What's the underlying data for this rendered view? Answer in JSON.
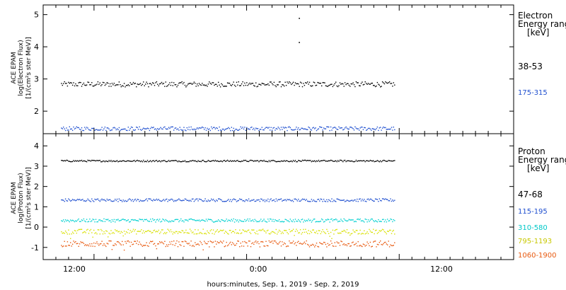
{
  "xlabel": "hours:minutes, Sep.  1, 2019 - Sep.  2, 2019",
  "x_ticks": [
    "12:00",
    "0:00",
    "12:00"
  ],
  "chart_data": [
    {
      "type": "scatter",
      "panel": "electron",
      "ylabel_lines": [
        "ACE EPAM",
        "log(Electron Flux)",
        "[1/(cm²s ster MeV)]"
      ],
      "ylim": [
        1.3,
        5.3
      ],
      "y_ticks": [
        2,
        3,
        4,
        5
      ],
      "legend_title": [
        "Electron",
        "Energy ranges",
        "[keV]"
      ],
      "series": [
        {
          "name": "38-53",
          "color": "#000000",
          "level": 2.85,
          "spread": 0.08
        },
        {
          "name": "175-315",
          "color": "#1f4fcf",
          "level": 1.47,
          "spread": 0.06
        }
      ],
      "outliers": [
        {
          "hour": 28.1,
          "value": 4.9
        },
        {
          "hour": 28.1,
          "value": 4.15
        }
      ]
    },
    {
      "type": "scatter",
      "panel": "proton",
      "ylim": [
        -1.6,
        4.6
      ],
      "y_ticks": [
        -1,
        0,
        1,
        2,
        3,
        4
      ],
      "ylabel_lines": [
        "ACE EPAM",
        "log(Proton Flux)",
        "[1/(cm²s ster MeV)]"
      ],
      "legend_title": [
        "Proton",
        "Energy ranges",
        "[keV]"
      ],
      "series": [
        {
          "name": "47-68",
          "color": "#000000",
          "level": 3.28,
          "spread": 0.04
        },
        {
          "name": "115-195",
          "color": "#1f4fcf",
          "level": 1.35,
          "spread": 0.07
        },
        {
          "name": "310-580",
          "color": "#00d0d0",
          "level": 0.35,
          "spread": 0.08
        },
        {
          "name": "795-1193",
          "color": "#d8e000",
          "level": -0.2,
          "spread": 0.12
        },
        {
          "name": "1060-1900",
          "color": "#e85a10",
          "level": -0.8,
          "spread": 0.15
        }
      ]
    }
  ],
  "x_range_hours": [
    8,
    45
  ],
  "data_range_hours": [
    9.4,
    35.6
  ],
  "x_tick_hours": [
    12,
    24,
    36
  ]
}
